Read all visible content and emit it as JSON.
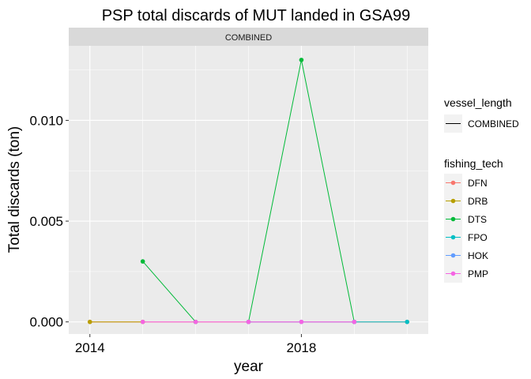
{
  "chart_data": {
    "type": "line",
    "title": "PSP total discards of MUT landed in GSA99",
    "facet_label": "COMBINED",
    "xlabel": "year",
    "ylabel": "Total discards (ton)",
    "x_ticks": [
      2014,
      2018
    ],
    "x_range": [
      2013.6,
      2020.4
    ],
    "y_ticks": [
      "0.000",
      "0.005",
      "0.010"
    ],
    "y_tick_values": [
      0,
      0.005,
      0.01
    ],
    "ylim": [
      -0.0006,
      0.0137
    ],
    "grid": true,
    "legend_position": "right",
    "legend_vessel": {
      "title": "vessel_length",
      "items": [
        "COMBINED"
      ]
    },
    "legend_tech": {
      "title": "fishing_tech"
    },
    "series": [
      {
        "name": "DFN",
        "color": "#F8766D",
        "points": [
          [
            2014,
            0
          ],
          [
            2020,
            0
          ]
        ]
      },
      {
        "name": "DRB",
        "color": "#B79F00",
        "points": [
          [
            2014,
            0
          ],
          [
            2015,
            0
          ]
        ]
      },
      {
        "name": "DTS",
        "color": "#00BA38",
        "points": [
          [
            2015,
            0.003
          ],
          [
            2016,
            0
          ]
        ],
        "segment2": [
          [
            2017,
            0
          ],
          [
            2018,
            0.013
          ],
          [
            2019,
            0
          ]
        ]
      },
      {
        "name": "FPO",
        "color": "#00BFC4",
        "points": [
          [
            2019,
            0
          ],
          [
            2020,
            0
          ]
        ]
      },
      {
        "name": "HOK",
        "color": "#619CFF",
        "points": [
          [
            2017,
            0
          ],
          [
            2018,
            0
          ],
          [
            2019,
            0
          ]
        ]
      },
      {
        "name": "PMP",
        "color": "#F564E3",
        "points": [
          [
            2015,
            0
          ],
          [
            2016,
            0
          ],
          [
            2017,
            0
          ],
          [
            2018,
            0
          ],
          [
            2019,
            0
          ]
        ]
      }
    ]
  }
}
